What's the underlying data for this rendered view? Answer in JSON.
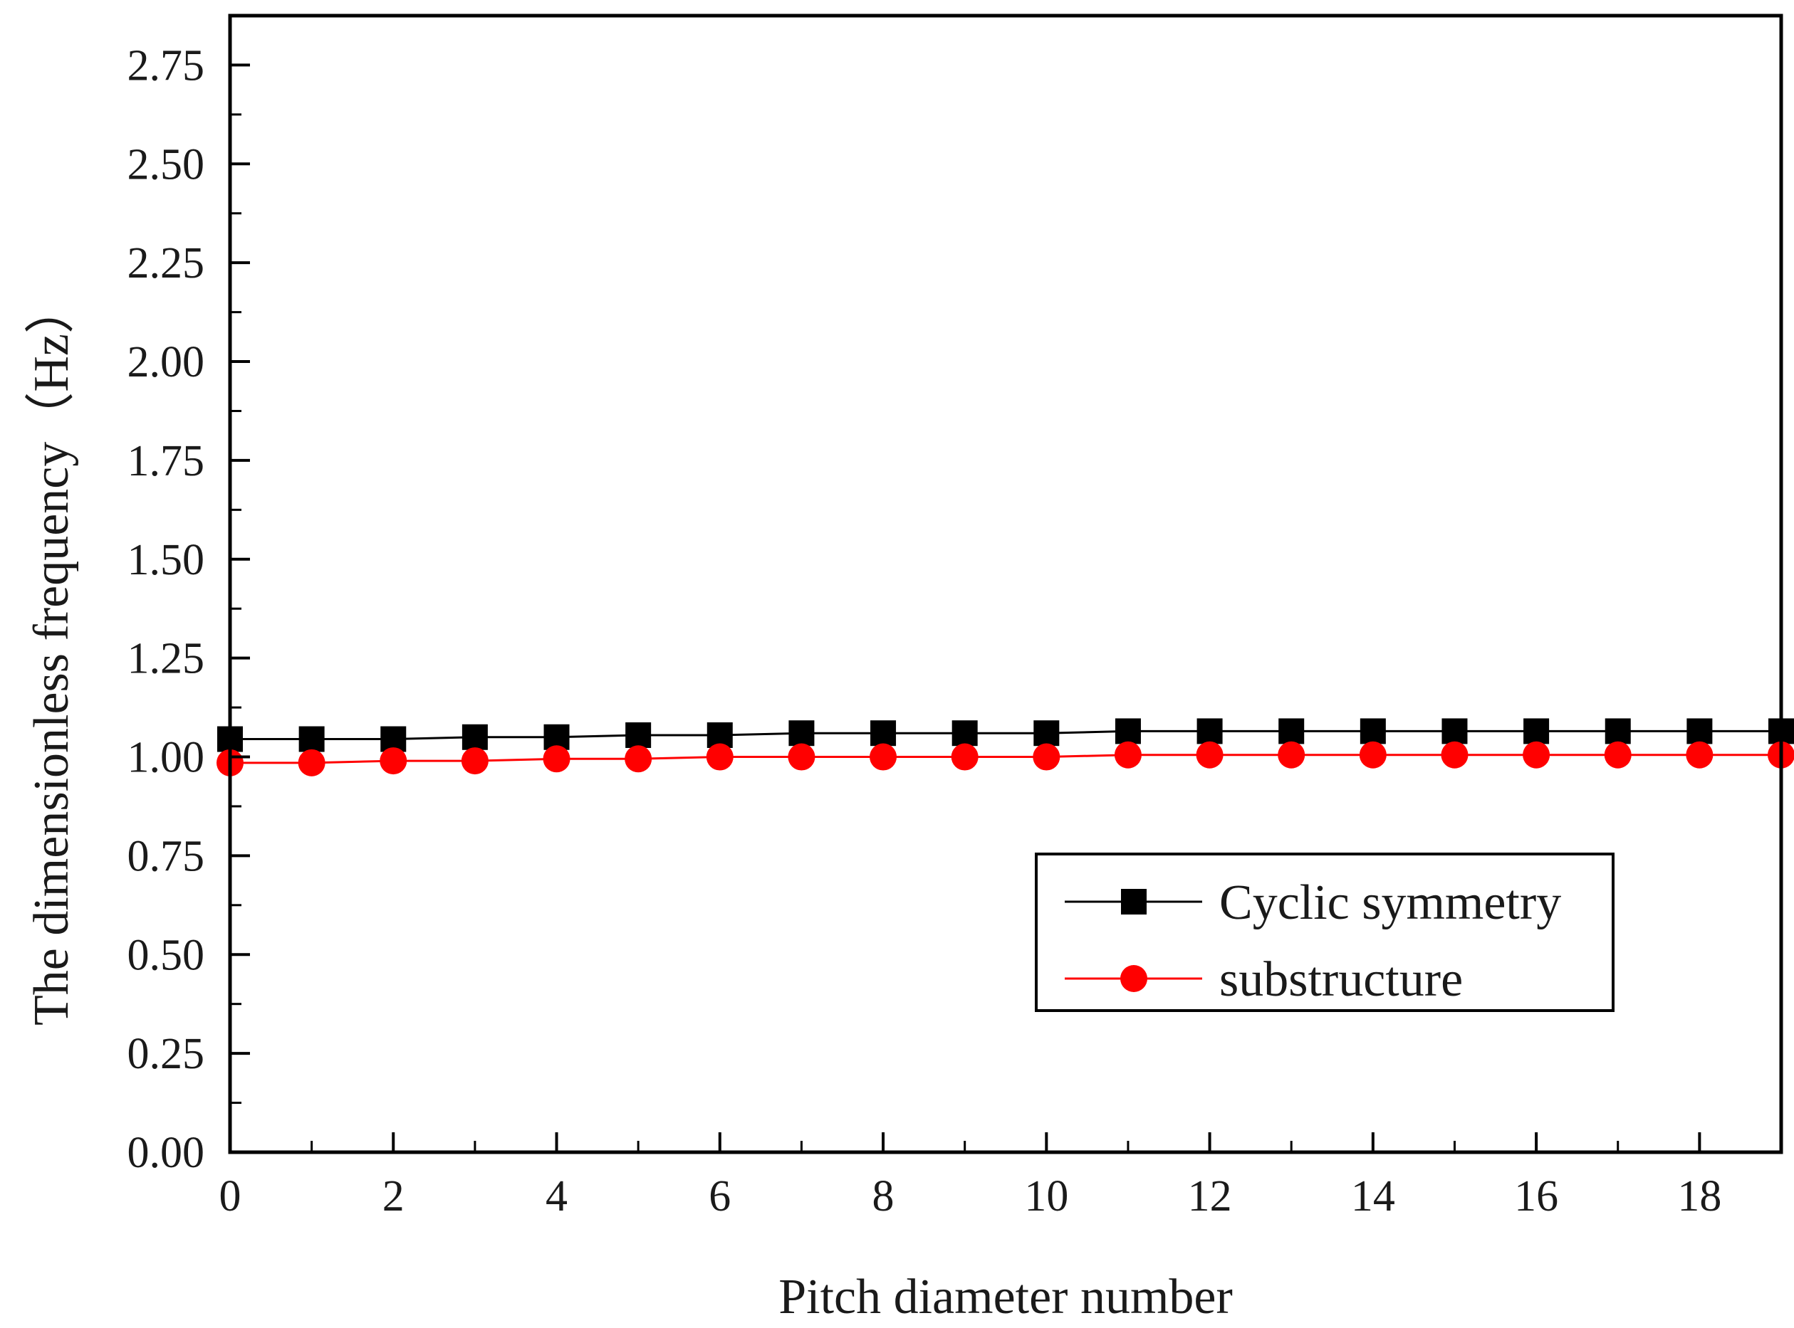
{
  "chart_data": {
    "type": "line",
    "title": "",
    "xlabel": "Pitch diameter number",
    "ylabel": "The dimensionless frequency（Hz）",
    "xlim": [
      0,
      19
    ],
    "ylim": [
      0,
      2.875
    ],
    "x_ticks": [
      "0",
      "2",
      "4",
      "6",
      "8",
      "10",
      "12",
      "14",
      "16",
      "18"
    ],
    "y_ticks": [
      "0.00",
      "0.25",
      "0.50",
      "0.75",
      "1.00",
      "1.25",
      "1.50",
      "1.75",
      "2.00",
      "2.25",
      "2.50",
      "2.75"
    ],
    "grid": false,
    "legend_position": "bottom-right",
    "x": [
      0,
      1,
      2,
      3,
      4,
      5,
      6,
      7,
      8,
      9,
      10,
      11,
      12,
      13,
      14,
      15,
      16,
      17,
      18,
      19
    ],
    "series": [
      {
        "name": "Cyclic symmetry",
        "color": "#000000",
        "marker": "square",
        "values": [
          1.045,
          1.045,
          1.045,
          1.05,
          1.05,
          1.055,
          1.055,
          1.06,
          1.06,
          1.06,
          1.06,
          1.065,
          1.065,
          1.065,
          1.065,
          1.065,
          1.065,
          1.065,
          1.065,
          1.065
        ]
      },
      {
        "name": "substructure",
        "color": "#ff0000",
        "marker": "circle",
        "values": [
          0.985,
          0.985,
          0.99,
          0.99,
          0.995,
          0.995,
          1.0,
          1.0,
          1.0,
          1.0,
          1.0,
          1.005,
          1.005,
          1.005,
          1.005,
          1.005,
          1.005,
          1.005,
          1.005,
          1.005
        ]
      }
    ]
  }
}
